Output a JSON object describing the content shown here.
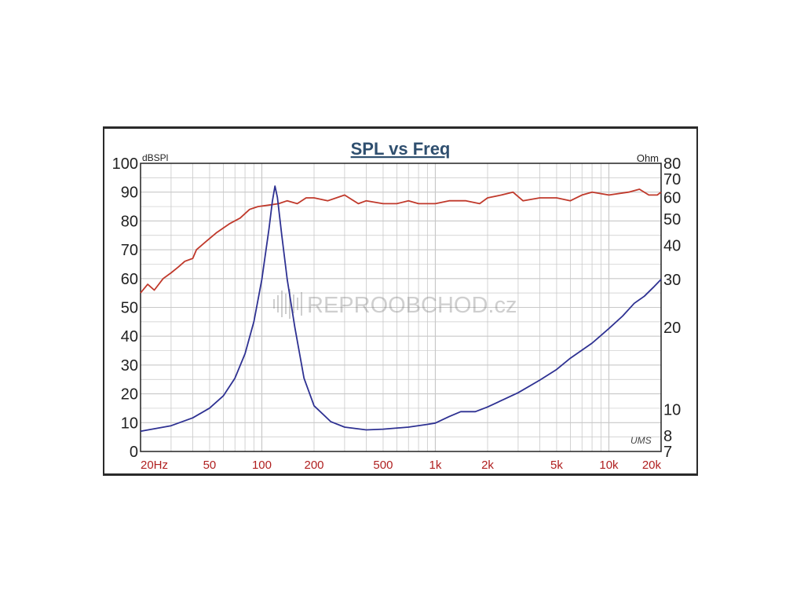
{
  "chart_data": {
    "type": "line",
    "title": "SPL vs Freq",
    "y_left_label": "dBSPl",
    "y_right_label": "Ohm",
    "x_scale": "log",
    "xlim": [
      20,
      20000
    ],
    "ylim_left": [
      0,
      100
    ],
    "ylim_right": [
      7,
      80
    ],
    "y_right_scale": "log",
    "grid": true,
    "x_ticks": [
      {
        "value": 20,
        "label": "20Hz"
      },
      {
        "value": 50,
        "label": "50"
      },
      {
        "value": 100,
        "label": "100"
      },
      {
        "value": 200,
        "label": "200"
      },
      {
        "value": 500,
        "label": "500"
      },
      {
        "value": 1000,
        "label": "1k"
      },
      {
        "value": 2000,
        "label": "2k"
      },
      {
        "value": 5000,
        "label": "5k"
      },
      {
        "value": 10000,
        "label": "10k"
      },
      {
        "value": 20000,
        "label": "20k"
      }
    ],
    "y_left_ticks": [
      0,
      10,
      20,
      30,
      40,
      50,
      60,
      70,
      80,
      90,
      100
    ],
    "y_right_ticks": [
      {
        "value": 7,
        "label": "7"
      },
      {
        "value": 8,
        "label": "8"
      },
      {
        "value": 10,
        "label": "10"
      },
      {
        "value": 20,
        "label": "20"
      },
      {
        "value": 30,
        "label": "30"
      },
      {
        "value": 40,
        "label": "40"
      },
      {
        "value": 50,
        "label": "50"
      },
      {
        "value": 60,
        "label": "60"
      },
      {
        "value": 70,
        "label": "70"
      },
      {
        "value": 80,
        "label": "80"
      }
    ],
    "series": [
      {
        "axis": "left",
        "color": "#c0392b",
        "points": [
          [
            20,
            55
          ],
          [
            22,
            58
          ],
          [
            24,
            56
          ],
          [
            27,
            60
          ],
          [
            30,
            62
          ],
          [
            33,
            64
          ],
          [
            36,
            66
          ],
          [
            40,
            67
          ],
          [
            42,
            70
          ],
          [
            48,
            73
          ],
          [
            55,
            76
          ],
          [
            65,
            79
          ],
          [
            75,
            81
          ],
          [
            85,
            84
          ],
          [
            95,
            85
          ],
          [
            110,
            85.5
          ],
          [
            125,
            86
          ],
          [
            140,
            87
          ],
          [
            160,
            86
          ],
          [
            180,
            88
          ],
          [
            200,
            88
          ],
          [
            240,
            87
          ],
          [
            300,
            89
          ],
          [
            360,
            86
          ],
          [
            400,
            87
          ],
          [
            500,
            86
          ],
          [
            600,
            86
          ],
          [
            700,
            87
          ],
          [
            800,
            86
          ],
          [
            1000,
            86
          ],
          [
            1200,
            87
          ],
          [
            1500,
            87
          ],
          [
            1800,
            86
          ],
          [
            2000,
            88
          ],
          [
            2400,
            89
          ],
          [
            2800,
            90
          ],
          [
            3200,
            87
          ],
          [
            4000,
            88
          ],
          [
            5000,
            88
          ],
          [
            6000,
            87
          ],
          [
            7000,
            89
          ],
          [
            8000,
            90
          ],
          [
            10000,
            89
          ],
          [
            13000,
            90
          ],
          [
            15000,
            91
          ],
          [
            17000,
            89
          ],
          [
            19000,
            89
          ],
          [
            20000,
            90
          ]
        ]
      },
      {
        "axis": "right",
        "color": "#2e3192",
        "points": [
          [
            20,
            8.3
          ],
          [
            30,
            8.7
          ],
          [
            40,
            9.3
          ],
          [
            50,
            10.1
          ],
          [
            60,
            11.2
          ],
          [
            70,
            13
          ],
          [
            80,
            16
          ],
          [
            90,
            21
          ],
          [
            100,
            30
          ],
          [
            110,
            46
          ],
          [
            115,
            58
          ],
          [
            119,
            66
          ],
          [
            123,
            60
          ],
          [
            130,
            44
          ],
          [
            140,
            30
          ],
          [
            155,
            20
          ],
          [
            175,
            13
          ],
          [
            200,
            10.3
          ],
          [
            250,
            9
          ],
          [
            300,
            8.6
          ],
          [
            400,
            8.4
          ],
          [
            500,
            8.45
          ],
          [
            700,
            8.6
          ],
          [
            900,
            8.8
          ],
          [
            1000,
            8.9
          ],
          [
            1200,
            9.4
          ],
          [
            1400,
            9.8
          ],
          [
            1700,
            9.8
          ],
          [
            2000,
            10.2
          ],
          [
            3000,
            11.5
          ],
          [
            4000,
            12.8
          ],
          [
            5000,
            14
          ],
          [
            6000,
            15.4
          ],
          [
            8000,
            17.5
          ],
          [
            10000,
            19.8
          ],
          [
            12000,
            22
          ],
          [
            14000,
            24.5
          ],
          [
            16000,
            26
          ],
          [
            18000,
            28
          ],
          [
            20000,
            30
          ]
        ]
      }
    ]
  },
  "watermark": "REPROOBCHOD.cz",
  "signature": "UMS",
  "colors": {
    "grid": "#c8c8c8",
    "axis_text": "#222222",
    "x_tick_text": "#b02020",
    "title": "#2f4f6f"
  }
}
